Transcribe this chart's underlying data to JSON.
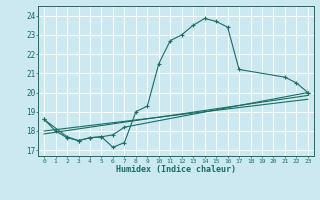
{
  "title": "",
  "xlabel": "Humidex (Indice chaleur)",
  "bg_color": "#cce8f0",
  "grid_color": "#ffffff",
  "line_color": "#1a6e64",
  "xlim": [
    -0.5,
    23.5
  ],
  "ylim": [
    16.7,
    24.5
  ],
  "xticks": [
    0,
    1,
    2,
    3,
    4,
    5,
    6,
    7,
    8,
    9,
    10,
    11,
    12,
    13,
    14,
    15,
    16,
    17,
    18,
    19,
    20,
    21,
    22,
    23
  ],
  "yticks": [
    17,
    18,
    19,
    20,
    21,
    22,
    23,
    24
  ],
  "series1_x": [
    0,
    1,
    2,
    3,
    4,
    5,
    6,
    7,
    8,
    9,
    10,
    11,
    12,
    13,
    14,
    15,
    16,
    17,
    21,
    22,
    23
  ],
  "series1_y": [
    18.6,
    18.0,
    17.65,
    17.5,
    17.65,
    17.7,
    17.15,
    17.4,
    19.0,
    19.3,
    21.5,
    22.7,
    23.0,
    23.5,
    23.85,
    23.7,
    23.4,
    21.2,
    20.8,
    20.5,
    20.0
  ],
  "series2_x": [
    0,
    2,
    3,
    4,
    5,
    6,
    7,
    23
  ],
  "series2_y": [
    18.6,
    17.7,
    17.5,
    17.65,
    17.7,
    17.8,
    18.2,
    20.0
  ],
  "series3_x": [
    0,
    23
  ],
  "series3_y": [
    18.0,
    19.65
  ],
  "series4_x": [
    0,
    23
  ],
  "series4_y": [
    17.85,
    19.85
  ]
}
